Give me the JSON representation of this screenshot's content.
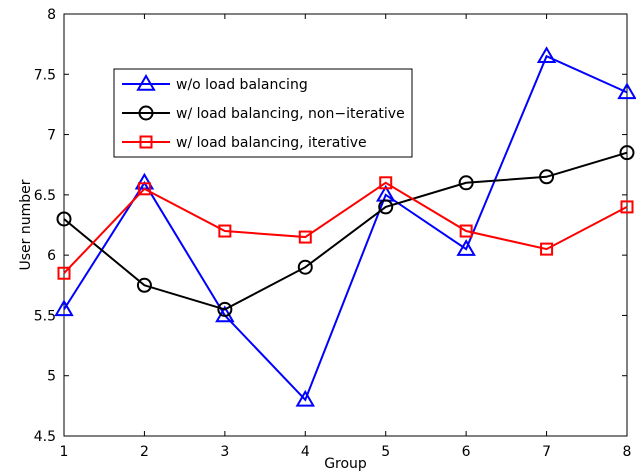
{
  "chart_data": {
    "type": "line",
    "xlabel": "Group",
    "ylabel": "User number",
    "x": [
      1,
      2,
      3,
      4,
      5,
      6,
      7,
      8
    ],
    "xlim": [
      1,
      8
    ],
    "ylim": [
      4.5,
      8
    ],
    "xticks": [
      "1",
      "2",
      "3",
      "4",
      "5",
      "6",
      "7",
      "8"
    ],
    "yticks": [
      "4.5",
      "5",
      "5.5",
      "6",
      "6.5",
      "7",
      "7.5",
      "8"
    ],
    "grid": false,
    "legend_position": "top-left",
    "series": [
      {
        "name": "w/o load balancing",
        "color": "#0000ff",
        "marker": "triangle",
        "values": [
          5.55,
          6.6,
          5.5,
          4.8,
          6.5,
          6.05,
          7.65,
          7.35
        ]
      },
      {
        "name": "w/ load balancing, non−iterative",
        "color": "#000000",
        "marker": "circle",
        "values": [
          6.3,
          5.75,
          5.55,
          5.9,
          6.4,
          6.6,
          6.65,
          6.85
        ]
      },
      {
        "name": "w/ load balancing, iterative",
        "color": "#ff0000",
        "marker": "square",
        "values": [
          5.85,
          6.55,
          6.2,
          6.15,
          6.6,
          6.2,
          6.05,
          6.4
        ]
      }
    ]
  }
}
